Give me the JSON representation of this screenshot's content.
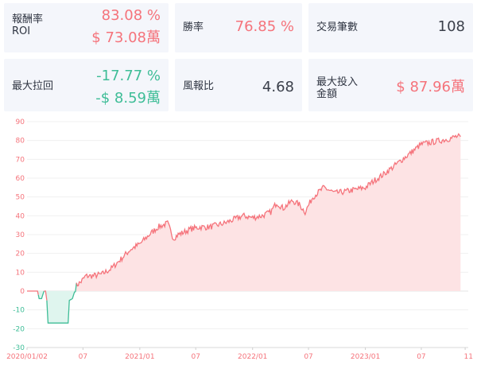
{
  "stats": {
    "roi": {
      "label_line1": "報酬率",
      "label_line2": "ROI",
      "percent": "83.08 %",
      "amount": "$ 73.08萬"
    },
    "win_rate": {
      "label": "勝率",
      "value": "76.85 %"
    },
    "trades": {
      "label": "交易筆數",
      "value": "108"
    },
    "max_drawdown": {
      "label": "最大拉回",
      "percent": "-17.77 %",
      "amount": "-$ 8.59萬"
    },
    "risk_reward": {
      "label": "風報比",
      "value": "4.68"
    },
    "max_investment": {
      "label_line1": "最大投入",
      "label_line2": "金額",
      "value": "$ 87.96萬"
    }
  },
  "colors": {
    "positive": "#f5737b",
    "negative": "#3ebd97",
    "positive_fill": "#fde3e4",
    "negative_fill": "#dff5ee"
  },
  "chart_data": {
    "type": "area",
    "y_ticks": [
      "90",
      "80",
      "70",
      "60",
      "50",
      "40",
      "30",
      "20",
      "10",
      "0",
      "-10",
      "-20",
      "-30"
    ],
    "ylim": [
      -30,
      90
    ],
    "x_ticks": [
      "2020/01/02",
      "07",
      "2021/01",
      "07",
      "2022/01",
      "07",
      "2023/01",
      "07",
      "11"
    ],
    "grid": true,
    "series": [
      {
        "x": [
          "2020-01-02",
          "2020-01-20",
          "2020-02-05",
          "2020-02-10",
          "2020-02-18",
          "2020-02-26",
          "2020-03-02",
          "2020-03-06",
          "2020-03-10",
          "2020-04-15",
          "2020-05-14",
          "2020-05-18",
          "2020-05-28",
          "2020-06-10",
          "2020-06-25",
          "2020-07-10",
          "2020-08-01",
          "2020-09-01",
          "2020-10-01",
          "2020-11-01",
          "2020-12-01",
          "2021-01-01",
          "2021-02-01",
          "2021-03-01",
          "2021-04-01",
          "2021-04-20",
          "2021-05-05",
          "2021-05-20",
          "2021-06-15",
          "2021-07-15",
          "2021-08-15",
          "2021-10-01",
          "2021-11-01",
          "2021-12-01",
          "2022-01-01",
          "2022-02-01",
          "2022-03-01",
          "2022-03-20",
          "2022-04-10",
          "2022-05-10",
          "2022-06-01",
          "2022-06-20",
          "2022-07-15",
          "2022-08-20",
          "2022-09-25",
          "2022-11-01",
          "2022-12-01",
          "2023-01-01",
          "2023-02-01",
          "2023-03-01",
          "2023-04-01",
          "2023-05-01",
          "2023-06-01",
          "2023-07-01",
          "2023-08-01",
          "2023-09-01",
          "2023-10-01",
          "2023-10-20",
          "2023-11-05"
        ],
        "y": [
          0,
          0,
          0,
          -4,
          -4,
          0,
          0,
          -5,
          -17,
          -17,
          -17,
          -5,
          -4,
          3,
          5,
          8,
          8,
          9,
          12,
          17,
          22,
          25,
          30,
          34,
          36,
          28,
          30,
          31,
          33,
          34,
          34,
          36,
          38,
          40,
          39,
          40,
          42,
          47,
          44,
          48,
          46,
          42,
          50,
          55,
          52,
          53,
          54,
          55,
          59,
          62,
          66,
          70,
          74,
          78,
          79,
          80,
          81,
          82,
          82
        ]
      }
    ]
  }
}
